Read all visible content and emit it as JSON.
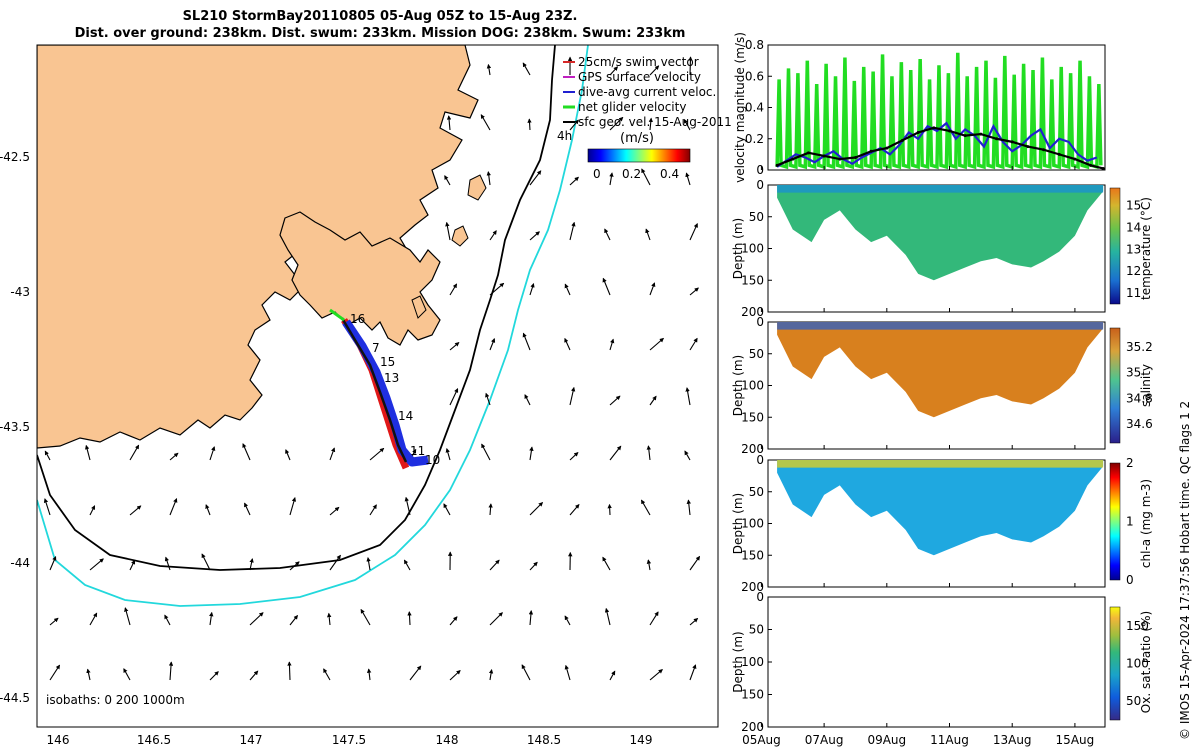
{
  "title": {
    "line1": "SL210 StormBay20110805 05-Aug 05Z to 15-Aug 23Z.",
    "line2": "Dist. over ground: 238km. Dist. swum: 233km. Mission DOG: 238km. Swum: 233km"
  },
  "map": {
    "legend": [
      {
        "label": "25cm/s swim vector",
        "color": "#d62828"
      },
      {
        "label": "GPS surface velocity",
        "color": "#c020c0"
      },
      {
        "label": "dive-avg current veloc.",
        "color": "#2020d0"
      },
      {
        "label": "net glider velocity",
        "color": "#22dd22"
      },
      {
        "label": "sfc geo. vel. 15-Aug-2011",
        "color": "#000000"
      }
    ],
    "colorbar_unit": "(m/s)",
    "colorbar_ticks": [
      "0",
      "0.2",
      "0.4"
    ],
    "x_ticks": [
      "146",
      "146.5",
      "147",
      "147.5",
      "148",
      "148.5",
      "149"
    ],
    "y_ticks": [
      "-42.5",
      "-43",
      "-43.5",
      "-44",
      "-44.5"
    ],
    "isobaths_label": "isobaths: 0   200  1000m",
    "track_labels": [
      "16",
      "7",
      "15",
      "13",
      "14",
      "11",
      "10",
      "4h"
    ],
    "colors": {
      "land": "#f9c592",
      "isobath200": "#000000",
      "isobath1000": "#22d8dc"
    }
  },
  "chart_data": [
    {
      "type": "line",
      "title": "",
      "ylabel": "velocity magnitude (m/s)",
      "ylim": [
        0,
        0.8
      ],
      "y_ticks": [
        "0",
        "0.2",
        "0.4",
        "0.6",
        "0.8"
      ],
      "x_tick_labels": [
        "05Aug",
        "07Aug",
        "09Aug",
        "11Aug",
        "13Aug",
        "15Aug"
      ],
      "x_range_days": [
        5.21,
        15.96
      ],
      "series": [
        {
          "name": "net glider velocity (green)",
          "color": "#22dd22",
          "x": [
            5.5,
            5.8,
            6.1,
            6.4,
            6.7,
            7.0,
            7.3,
            7.6,
            7.9,
            8.2,
            8.5,
            8.8,
            9.1,
            9.4,
            9.7,
            10.0,
            10.3,
            10.6,
            10.9,
            11.2,
            11.5,
            11.8,
            12.1,
            12.4,
            12.7,
            13.0,
            13.3,
            13.6,
            13.9,
            14.2,
            14.5,
            14.8,
            15.1,
            15.4,
            15.7
          ],
          "values": [
            0.58,
            0.65,
            0.62,
            0.7,
            0.55,
            0.68,
            0.6,
            0.72,
            0.57,
            0.66,
            0.63,
            0.74,
            0.6,
            0.69,
            0.64,
            0.71,
            0.58,
            0.67,
            0.62,
            0.75,
            0.6,
            0.66,
            0.7,
            0.59,
            0.73,
            0.61,
            0.68,
            0.64,
            0.72,
            0.58,
            0.66,
            0.62,
            0.7,
            0.6,
            0.55
          ]
        },
        {
          "name": "dive-avg current (blue)",
          "color": "#2020d0",
          "x": [
            5.5,
            5.8,
            6.1,
            6.4,
            6.7,
            7.0,
            7.3,
            7.6,
            7.9,
            8.2,
            8.5,
            8.8,
            9.1,
            9.4,
            9.7,
            10.0,
            10.3,
            10.6,
            10.9,
            11.2,
            11.5,
            11.8,
            12.1,
            12.4,
            12.7,
            13.0,
            13.3,
            13.6,
            13.9,
            14.2,
            14.5,
            14.8,
            15.1,
            15.4,
            15.7
          ],
          "values": [
            0.02,
            0.06,
            0.1,
            0.08,
            0.05,
            0.09,
            0.12,
            0.07,
            0.04,
            0.08,
            0.11,
            0.14,
            0.1,
            0.16,
            0.24,
            0.2,
            0.28,
            0.25,
            0.3,
            0.2,
            0.26,
            0.22,
            0.15,
            0.28,
            0.18,
            0.12,
            0.16,
            0.22,
            0.26,
            0.14,
            0.2,
            0.18,
            0.1,
            0.06,
            0.08
          ]
        },
        {
          "name": "smoothed speed (black)",
          "color": "#000000",
          "x": [
            5.5,
            6.0,
            6.5,
            7.0,
            7.5,
            8.0,
            8.5,
            9.0,
            9.5,
            10.0,
            10.5,
            11.0,
            11.5,
            12.0,
            12.5,
            13.0,
            13.5,
            14.0,
            14.5,
            15.0,
            15.5,
            15.9
          ],
          "values": [
            0.03,
            0.07,
            0.11,
            0.09,
            0.07,
            0.08,
            0.12,
            0.14,
            0.19,
            0.24,
            0.27,
            0.25,
            0.22,
            0.23,
            0.2,
            0.18,
            0.15,
            0.13,
            0.1,
            0.07,
            0.03,
            0.01
          ]
        }
      ]
    },
    {
      "type": "heatmap",
      "variable": "temperature",
      "cbar_label": "temperature (°C)",
      "ylabel": "Depth (m)",
      "ylim": [
        200,
        0
      ],
      "y_ticks": [
        "0",
        "50",
        "100",
        "150",
        "200"
      ],
      "cbar_ticks": [
        "11",
        "12",
        "13",
        "14",
        "15"
      ],
      "clim": [
        10.5,
        15.8
      ],
      "bottom_depth_x": [
        5.5,
        6.0,
        6.6,
        7.0,
        7.5,
        8.0,
        8.5,
        9.0,
        9.6,
        10.0,
        10.5,
        11.0,
        11.5,
        12.0,
        12.5,
        13.0,
        13.6,
        14.0,
        14.5,
        15.0,
        15.4,
        15.9
      ],
      "bottom_depth_m": [
        20,
        70,
        90,
        55,
        40,
        70,
        90,
        80,
        110,
        140,
        150,
        140,
        130,
        120,
        115,
        125,
        130,
        120,
        105,
        80,
        40,
        10
      ],
      "typical_value": 13.3
    },
    {
      "type": "heatmap",
      "variable": "salinity",
      "cbar_label": "salinity",
      "ylabel": "Depth (m)",
      "ylim": [
        200,
        0
      ],
      "y_ticks": [
        "0",
        "50",
        "100",
        "150",
        "200"
      ],
      "cbar_ticks": [
        "34.6",
        "34.8",
        "35",
        "35.2"
      ],
      "clim": [
        34.45,
        35.35
      ],
      "typical_value": 35.2
    },
    {
      "type": "heatmap",
      "variable": "chl-a",
      "cbar_label": "chl-a (mg m-3)",
      "ylabel": "Depth (m)",
      "ylim": [
        200,
        0
      ],
      "y_ticks": [
        "0",
        "50",
        "100",
        "150",
        "200"
      ],
      "cbar_ticks": [
        "0",
        "1",
        "2"
      ],
      "clim": [
        0,
        2
      ],
      "typical_value": 0.55
    },
    {
      "type": "heatmap",
      "variable": "oxygen saturation",
      "cbar_label": "Ox. sat. ratio (%)",
      "ylabel": "Depth (m)",
      "ylim": [
        200,
        0
      ],
      "y_ticks": [
        "0",
        "50",
        "100",
        "150",
        "200"
      ],
      "cbar_ticks": [
        "50",
        "100",
        "150"
      ],
      "clim": [
        25,
        175
      ],
      "note": "empty panel"
    }
  ],
  "copyright": "© IMOS 15-Apr-2024 17:37:56 Hobart time. QC flags 1  2"
}
